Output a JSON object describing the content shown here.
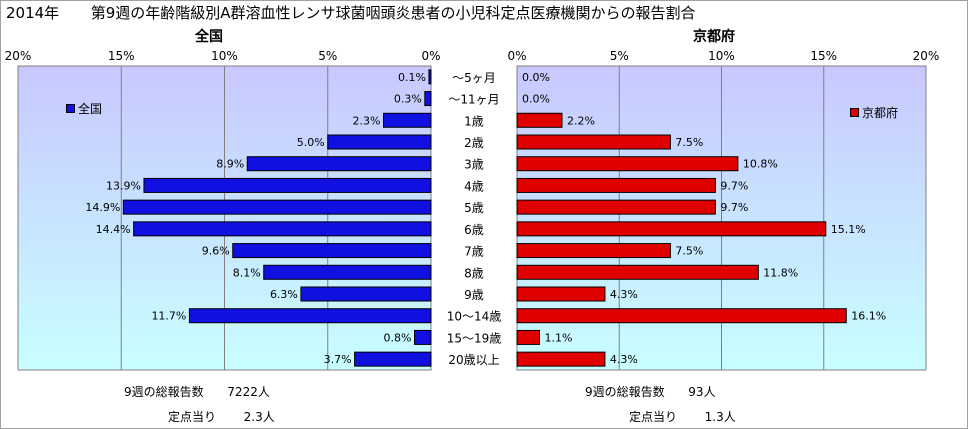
{
  "page": {
    "year_label": "2014年",
    "title": "第9週の年齢階級別A群溶血性レンサ球菌咽頭炎患者の小児科定点医療機関からの報告割合"
  },
  "colors": {
    "national": "#1010e0",
    "kyoto": "#e00000",
    "bg_top": "#c8c8ff",
    "bg_bottom": "#c8ffff"
  },
  "chart_data": [
    {
      "type": "bar",
      "orientation": "horizontal",
      "direction": "reversed",
      "title": "全国",
      "xlim": [
        0,
        20
      ],
      "x_ticks": [
        "0%",
        "5%",
        "10%",
        "15%",
        "20%"
      ],
      "categories": [
        "〜5ヶ月",
        "〜11ヶ月",
        "1歳",
        "2歳",
        "3歳",
        "4歳",
        "5歳",
        "6歳",
        "7歳",
        "8歳",
        "9歳",
        "10〜14歳",
        "15〜19歳",
        "20歳以上"
      ],
      "series": [
        {
          "name": "全国",
          "values": [
            0.1,
            0.3,
            2.3,
            5.0,
            8.9,
            13.9,
            14.9,
            14.4,
            9.6,
            8.1,
            6.3,
            11.7,
            0.8,
            3.7
          ]
        }
      ],
      "data_labels": [
        "0.1%",
        "0.3%",
        "2.3%",
        "5.0%",
        "8.9%",
        "13.9%",
        "14.9%",
        "14.4%",
        "9.6%",
        "8.1%",
        "6.3%",
        "11.7%",
        "0.8%",
        "3.7%"
      ],
      "legend": "left",
      "grid": true
    },
    {
      "type": "bar",
      "orientation": "horizontal",
      "title": "京都府",
      "xlim": [
        0,
        20
      ],
      "x_ticks": [
        "0%",
        "5%",
        "10%",
        "15%",
        "20%"
      ],
      "categories": [
        "〜5ヶ月",
        "〜11ヶ月",
        "1歳",
        "2歳",
        "3歳",
        "4歳",
        "5歳",
        "6歳",
        "7歳",
        "8歳",
        "9歳",
        "10〜14歳",
        "15〜19歳",
        "20歳以上"
      ],
      "series": [
        {
          "name": "京都府",
          "values": [
            0.0,
            0.0,
            2.2,
            7.5,
            10.8,
            9.7,
            9.7,
            15.1,
            7.5,
            11.8,
            4.3,
            16.1,
            1.1,
            4.3
          ]
        }
      ],
      "data_labels": [
        "0.0%",
        "0.0%",
        "2.2%",
        "7.5%",
        "10.8%",
        "9.7%",
        "9.7%",
        "15.1%",
        "7.5%",
        "11.8%",
        "4.3%",
        "16.1%",
        "1.1%",
        "4.3%"
      ],
      "legend": "right",
      "grid": true
    }
  ],
  "footer": {
    "national": {
      "reports_label": "9週の総報告数",
      "reports_value": "7222人",
      "per_site_label": "定点当り",
      "per_site_value": "2.3人"
    },
    "kyoto": {
      "reports_label": "9週の総報告数",
      "reports_value": "93人",
      "per_site_label": "定点当り",
      "per_site_value": "1.3人"
    }
  }
}
